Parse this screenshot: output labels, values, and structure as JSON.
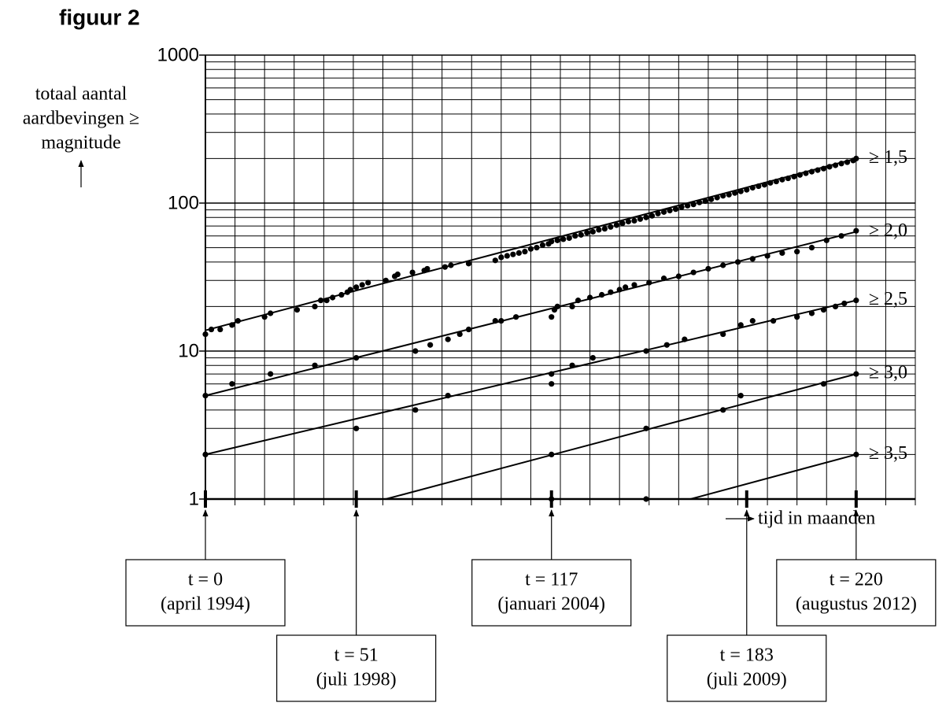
{
  "chart_data": {
    "type": "scatter",
    "title": "figuur 2",
    "y_label": [
      "totaal aantal",
      "aardbevingen ≥",
      "magnitude"
    ],
    "x_label": "tijd in maanden",
    "log_y": true,
    "grid": true,
    "color": "#000000",
    "xlim": [
      0,
      240
    ],
    "ylim": [
      1,
      1000
    ],
    "yticks": [
      1,
      10,
      100,
      1000
    ],
    "y_minor_grid": [
      2,
      3,
      4,
      5,
      6,
      7,
      8,
      9,
      20,
      30,
      40,
      50,
      60,
      70,
      80,
      90,
      200,
      300,
      400,
      500,
      600,
      700,
      800,
      900
    ],
    "x_grid": [
      0,
      10,
      20,
      30,
      40,
      50,
      60,
      70,
      80,
      90,
      100,
      110,
      120,
      130,
      140,
      150,
      160,
      170,
      180,
      190,
      200,
      210,
      220,
      230,
      240
    ],
    "series": [
      {
        "name": "≥ 1,5",
        "x": [
          0,
          2,
          5,
          9,
          11,
          20,
          22,
          31,
          37,
          39,
          41,
          43,
          46,
          48,
          49,
          51,
          53,
          55,
          61,
          64,
          65,
          70,
          74,
          75,
          81,
          83,
          89,
          98,
          100,
          102,
          104,
          106,
          108,
          110,
          112,
          114,
          116,
          117,
          119,
          121,
          123,
          125,
          127,
          129,
          131,
          133,
          135,
          137,
          139,
          141,
          143,
          145,
          147,
          149,
          151,
          153,
          155,
          157,
          159,
          161,
          163,
          165,
          167,
          169,
          171,
          173,
          175,
          177,
          179,
          181,
          183,
          185,
          187,
          189,
          191,
          193,
          195,
          197,
          199,
          201,
          203,
          205,
          207,
          209,
          211,
          213,
          215,
          217,
          219,
          220
        ],
        "values": [
          13,
          14,
          14,
          15,
          16,
          17,
          18,
          19,
          20,
          22,
          22,
          23,
          24,
          25,
          26,
          27,
          28,
          29,
          30,
          32,
          33,
          34,
          35,
          36,
          37,
          38,
          39,
          41,
          43,
          44,
          45,
          46,
          47,
          49,
          50,
          52,
          53,
          55,
          56,
          57,
          58,
          60,
          61,
          63,
          64,
          66,
          67,
          69,
          71,
          73,
          75,
          76,
          78,
          80,
          82,
          85,
          87,
          89,
          91,
          94,
          96,
          98,
          101,
          103,
          106,
          109,
          112,
          114,
          117,
          120,
          123,
          127,
          130,
          133,
          137,
          140,
          144,
          147,
          151,
          155,
          159,
          163,
          167,
          171,
          176,
          180,
          185,
          189,
          194,
          200
        ],
        "fit": {
          "x": [
            0,
            220
          ],
          "values": [
            13.8,
            200
          ]
        }
      },
      {
        "name": "≥ 2,0",
        "x": [
          0,
          9,
          22,
          37,
          51,
          71,
          76,
          82,
          86,
          89,
          98,
          100,
          105,
          117,
          118,
          119,
          124,
          126,
          130,
          134,
          137,
          140,
          142,
          145,
          150,
          155,
          160,
          165,
          170,
          175,
          180,
          185,
          190,
          195,
          200,
          205,
          210,
          215,
          220
        ],
        "values": [
          5,
          6,
          7,
          8,
          9,
          10,
          11,
          12,
          13,
          14,
          16,
          16,
          17,
          17,
          19,
          20,
          20,
          22,
          23,
          24,
          25,
          26,
          27,
          28,
          29,
          31,
          32,
          34,
          36,
          38,
          40,
          42,
          44,
          46,
          47,
          50,
          56,
          60,
          65
        ],
        "fit": {
          "x": [
            0,
            220
          ],
          "values": [
            5,
            64
          ]
        }
      },
      {
        "name": "≥ 2,5",
        "x": [
          0,
          51,
          71,
          82,
          117,
          117,
          124,
          131,
          149,
          156,
          162,
          175,
          181,
          185,
          192,
          200,
          205,
          209,
          213,
          216,
          220
        ],
        "values": [
          2,
          3,
          4,
          5,
          6,
          7,
          8,
          9,
          10,
          11,
          12,
          13,
          15,
          16,
          16,
          17,
          18,
          19,
          20,
          21,
          22
        ],
        "fit": {
          "x": [
            0,
            220
          ],
          "values": [
            2,
            22
          ]
        }
      },
      {
        "name": "≥ 3,0",
        "x": [
          117,
          149,
          175,
          181,
          209,
          220
        ],
        "values": [
          2,
          3,
          4,
          5,
          6,
          7
        ],
        "fit": {
          "x": [
            61,
            220
          ],
          "values": [
            1,
            7
          ]
        }
      },
      {
        "name": "≥ 3,5",
        "x": [
          117,
          149,
          220
        ],
        "values": [
          1,
          1,
          2
        ],
        "fit": {
          "x": [
            164,
            220
          ],
          "values": [
            1,
            2
          ]
        }
      }
    ],
    "annotations": [
      {
        "t": 0,
        "label": "t = 0",
        "date": "(april 1994)"
      },
      {
        "t": 51,
        "label": "t = 51",
        "date": "(juli 1998)"
      },
      {
        "t": 117,
        "label": "t = 117",
        "date": "(januari 2004)"
      },
      {
        "t": 183,
        "label": "t = 183",
        "date": "(juli 2009)"
      },
      {
        "t": 220,
        "label": "t = 220",
        "date": "(augustus 2012)"
      }
    ]
  }
}
